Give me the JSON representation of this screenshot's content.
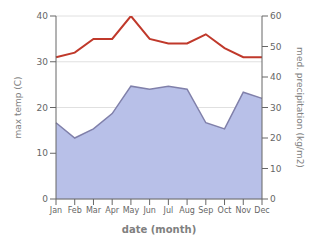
{
  "chart_data": {
    "type": "line",
    "xlabel": "date (month)",
    "ylabel": "max temp (C)",
    "y2label": "med. precipitation (kg/m2)",
    "categories": [
      "Jan",
      "Feb",
      "Mar",
      "Apr",
      "May",
      "Jun",
      "Jul",
      "Aug",
      "Sep",
      "Oct",
      "Nov",
      "Dec"
    ],
    "series": [
      {
        "type": "area",
        "axis": "y2",
        "color": "#b8c0e8",
        "values": [
          25,
          20,
          23,
          28,
          37,
          36,
          37,
          36,
          25,
          23,
          35,
          33
        ]
      },
      {
        "type": "line",
        "axis": "y2",
        "color": "#8080aa",
        "values": [
          25,
          20,
          23,
          28,
          37,
          36,
          37,
          36,
          25,
          23,
          35,
          33
        ]
      },
      {
        "type": "line",
        "axis": "y",
        "color": "#c0392b",
        "values": [
          31,
          32,
          35,
          35,
          40,
          35,
          34,
          34,
          36,
          33,
          31,
          31
        ]
      }
    ],
    "ylim": [
      0,
      40
    ],
    "yticks": [
      0,
      10,
      20,
      30,
      40
    ],
    "y2lim": [
      0,
      60
    ],
    "y2ticks": [
      0,
      10,
      20,
      30,
      40,
      50,
      60
    ],
    "grid": true
  }
}
